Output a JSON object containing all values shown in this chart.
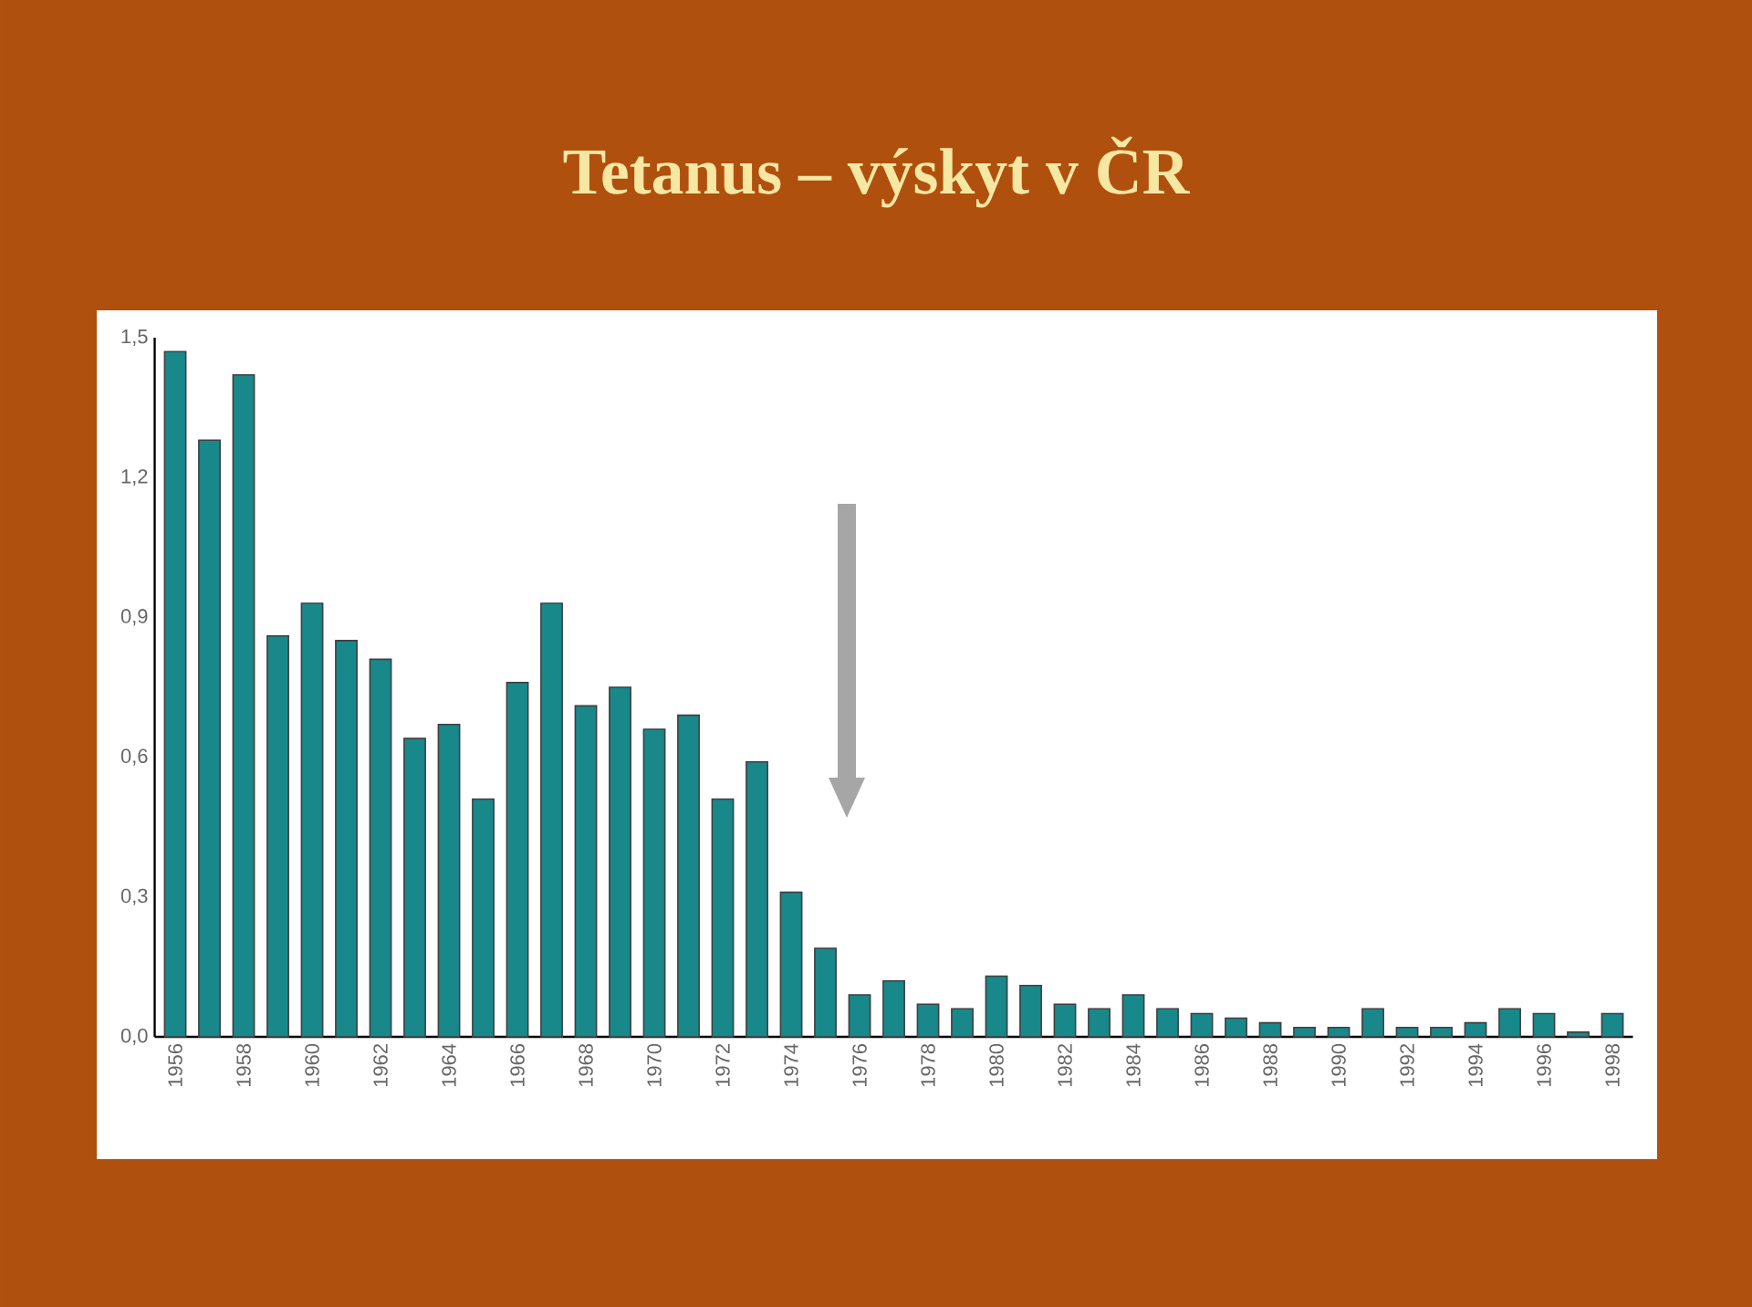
{
  "chart_data": {
    "type": "bar",
    "title": "Tetanus – výskyt v ČR",
    "categories": [
      "1956",
      null,
      "1958",
      null,
      "1960",
      null,
      "1962",
      null,
      "1964",
      null,
      "1966",
      null,
      "1968",
      null,
      "1970",
      null,
      "1972",
      null,
      "1974",
      null,
      "1976",
      null,
      "1978",
      null,
      "1980",
      null,
      "1982",
      null,
      "1984",
      null,
      "1986",
      null,
      "1988",
      null,
      "1990",
      null,
      "1992",
      null,
      "1994",
      null,
      "1996",
      null,
      "1998"
    ],
    "values": [
      1.47,
      1.28,
      1.42,
      0.86,
      0.93,
      0.85,
      0.81,
      0.64,
      0.67,
      0.51,
      0.76,
      0.93,
      0.71,
      0.75,
      0.66,
      0.69,
      0.51,
      0.59,
      0.31,
      0.19,
      0.09,
      0.12,
      0.07,
      0.06,
      0.13,
      0.11,
      0.07,
      0.06,
      0.09,
      0.06,
      0.05,
      0.04,
      0.03,
      0.02,
      0.02,
      0.06,
      0.02,
      0.02,
      0.03,
      0.06,
      0.05,
      0.01,
      0.05
    ],
    "color": "#18888a",
    "ylim": [
      0,
      1.5
    ],
    "yticks": [
      {
        "value": 0,
        "label": "0,0"
      },
      {
        "value": 0.3,
        "label": "0,3"
      },
      {
        "value": 0.6,
        "label": "0,6"
      },
      {
        "value": 0.9,
        "label": "0,9"
      },
      {
        "value": 1.2,
        "label": "1,2"
      },
      {
        "value": 1.5,
        "label": "1,5"
      }
    ],
    "grid": false
  }
}
